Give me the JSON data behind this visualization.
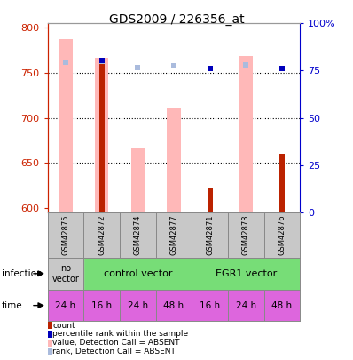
{
  "title": "GDS2009 / 226356_at",
  "samples": [
    "GSM42875",
    "GSM42872",
    "GSM42874",
    "GSM42877",
    "GSM42871",
    "GSM42873",
    "GSM42876"
  ],
  "pink_bar_heights": [
    788,
    767,
    666,
    711,
    null,
    769,
    null
  ],
  "dark_red_bar_heights": [
    null,
    767,
    null,
    null,
    622,
    null,
    660
  ],
  "light_blue_squares_y": [
    762,
    763,
    756,
    758,
    null,
    759,
    null
  ],
  "dark_blue_squares_y": [
    null,
    764,
    null,
    null,
    755,
    null,
    755
  ],
  "ylim_left": [
    595,
    805
  ],
  "yticks_left": [
    600,
    650,
    700,
    750,
    800
  ],
  "yticks_right": [
    0,
    25,
    50,
    75,
    100
  ],
  "left_axis_color": "#cc2200",
  "right_axis_color": "#0000cc",
  "bg_color": "#ffffff",
  "sample_row_color": "#c8c8c8",
  "infection_no_vector_color": "#c8c8c8",
  "infection_vector_color": "#77dd77",
  "time_color": "#dd66dd",
  "time_labels": [
    "24 h",
    "16 h",
    "24 h",
    "48 h",
    "16 h",
    "24 h",
    "48 h"
  ],
  "legend_items": [
    {
      "color": "#bb2200",
      "label": "count"
    },
    {
      "color": "#0000bb",
      "label": "percentile rank within the sample"
    },
    {
      "color": "#ffb8b8",
      "label": "value, Detection Call = ABSENT"
    },
    {
      "color": "#aabbdd",
      "label": "rank, Detection Call = ABSENT"
    }
  ]
}
